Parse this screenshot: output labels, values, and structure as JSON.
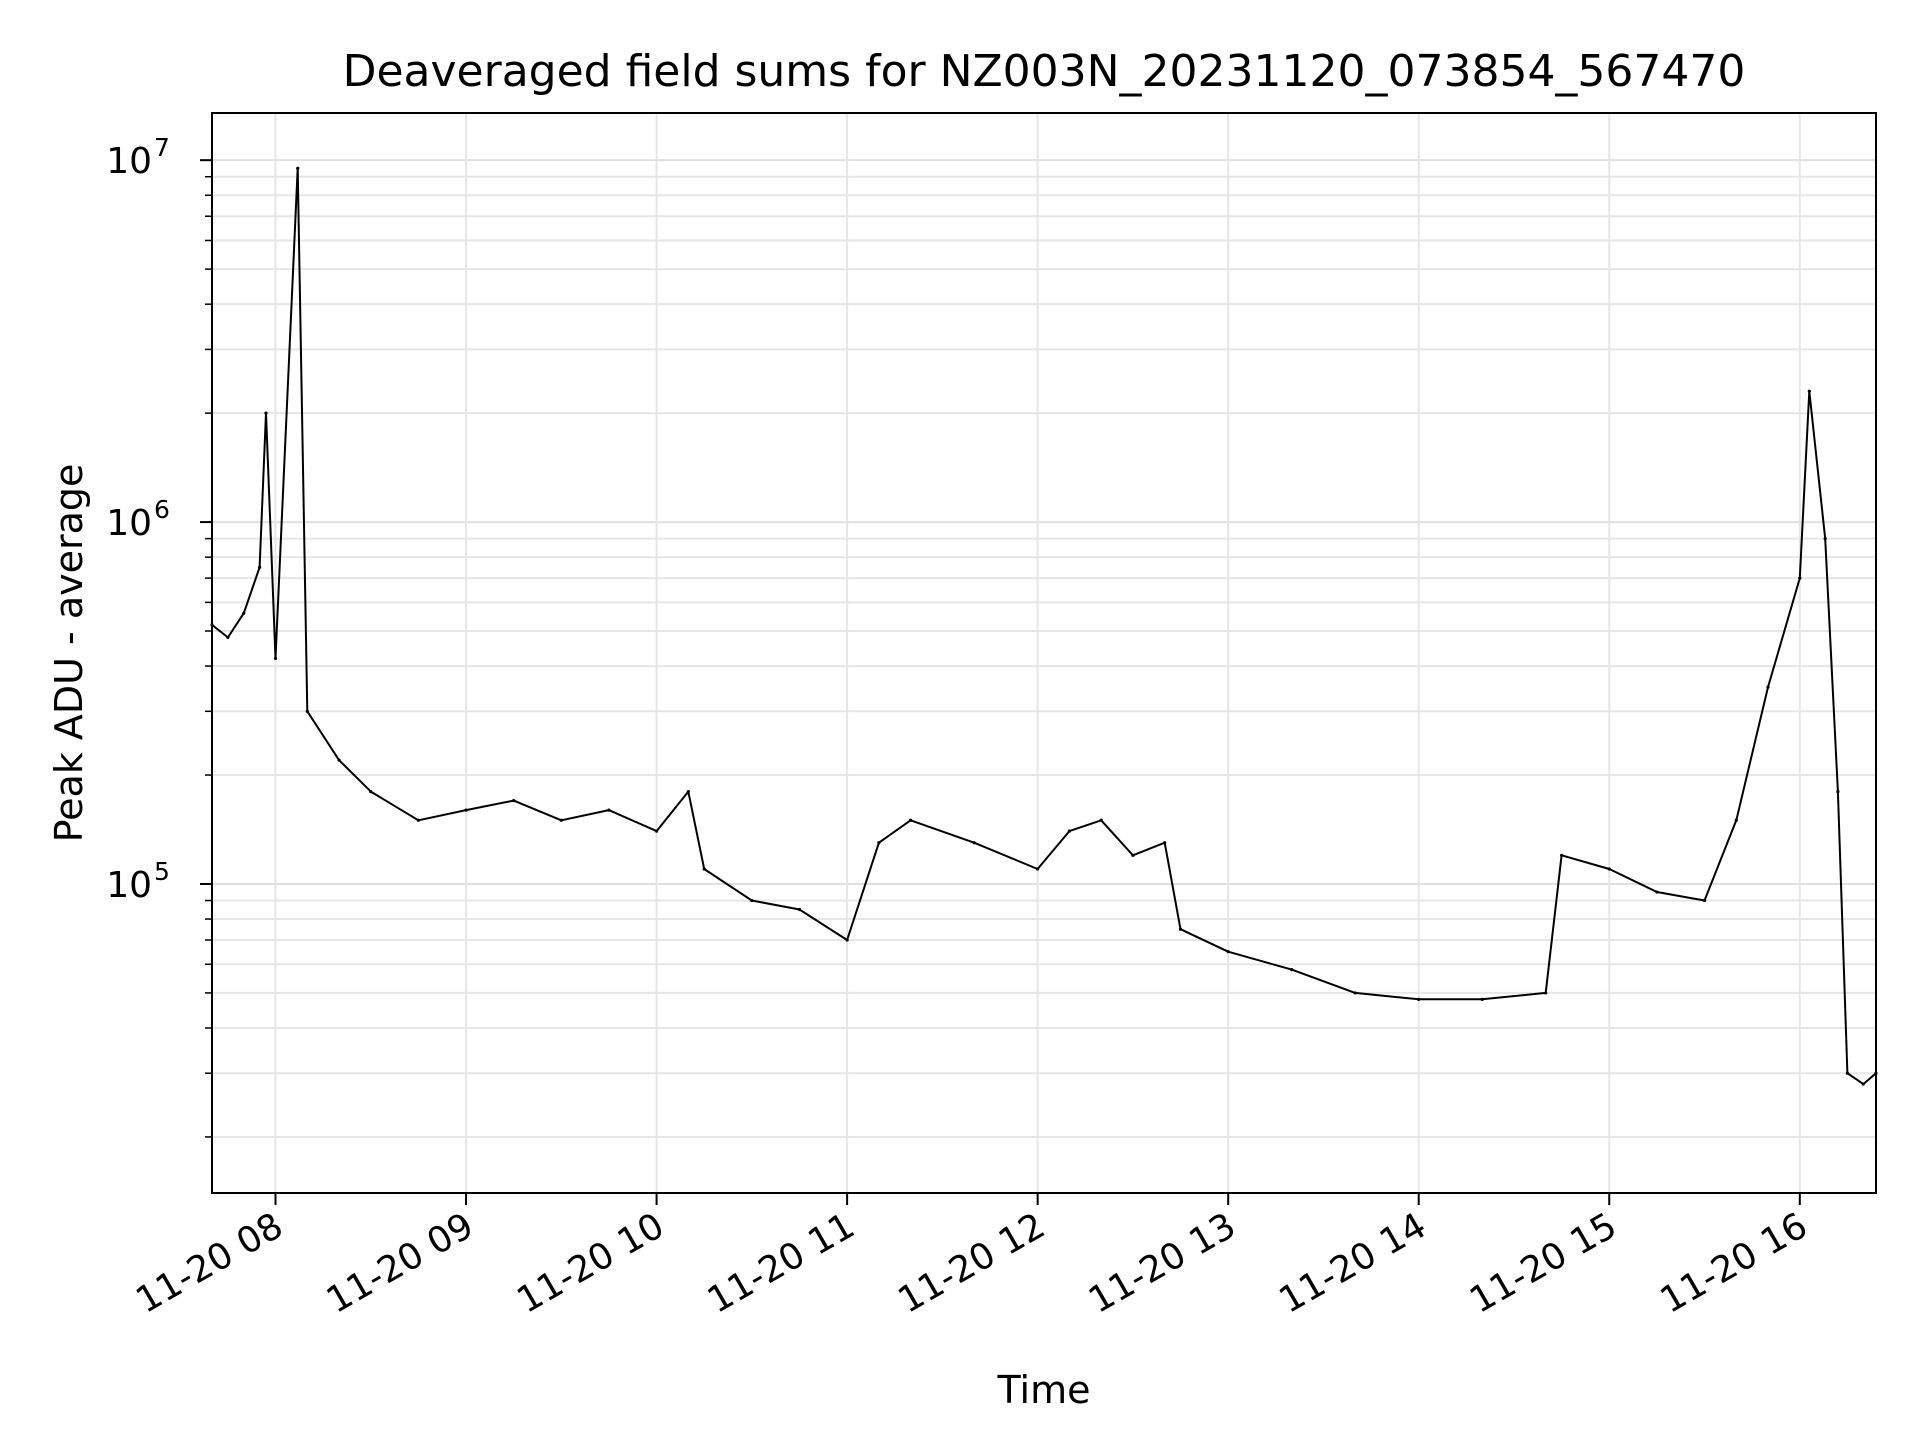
{
  "chart_data": {
    "type": "line",
    "title": "Deaveraged field sums for NZ003N_20231120_073854_567470",
    "xlabel": "Time",
    "ylabel": "Peak ADU - average",
    "y_scale": "log",
    "ylim": [
      14000,
      13500000
    ],
    "xlim": [
      "2023-11-20 07:40",
      "2023-11-20 16:24"
    ],
    "grid": true,
    "line_color": "#000000",
    "x_ticks": [
      {
        "at": "2023-11-20 08:00",
        "label": "11-20 08"
      },
      {
        "at": "2023-11-20 09:00",
        "label": "11-20 09"
      },
      {
        "at": "2023-11-20 10:00",
        "label": "11-20 10"
      },
      {
        "at": "2023-11-20 11:00",
        "label": "11-20 11"
      },
      {
        "at": "2023-11-20 12:00",
        "label": "11-20 12"
      },
      {
        "at": "2023-11-20 13:00",
        "label": "11-20 13"
      },
      {
        "at": "2023-11-20 14:00",
        "label": "11-20 14"
      },
      {
        "at": "2023-11-20 15:00",
        "label": "11-20 15"
      },
      {
        "at": "2023-11-20 16:00",
        "label": "11-20 16"
      }
    ],
    "y_ticks": [
      {
        "value": 100000,
        "base": "10",
        "exp": "5"
      },
      {
        "value": 1000000,
        "base": "10",
        "exp": "6"
      },
      {
        "value": 10000000,
        "base": "10",
        "exp": "7"
      }
    ],
    "series": [
      {
        "points": [
          [
            "2023-11-20 07:40",
            520000
          ],
          [
            "2023-11-20 07:45",
            480000
          ],
          [
            "2023-11-20 07:50",
            560000
          ],
          [
            "2023-11-20 07:55",
            750000
          ],
          [
            "2023-11-20 07:57",
            2000000
          ],
          [
            "2023-11-20 08:00",
            420000
          ],
          [
            "2023-11-20 08:07",
            9500000
          ],
          [
            "2023-11-20 08:10",
            300000
          ],
          [
            "2023-11-20 08:20",
            220000
          ],
          [
            "2023-11-20 08:30",
            180000
          ],
          [
            "2023-11-20 08:45",
            150000
          ],
          [
            "2023-11-20 09:00",
            160000
          ],
          [
            "2023-11-20 09:15",
            170000
          ],
          [
            "2023-11-20 09:30",
            150000
          ],
          [
            "2023-11-20 09:45",
            160000
          ],
          [
            "2023-11-20 10:00",
            140000
          ],
          [
            "2023-11-20 10:10",
            180000
          ],
          [
            "2023-11-20 10:15",
            110000
          ],
          [
            "2023-11-20 10:30",
            90000
          ],
          [
            "2023-11-20 10:45",
            85000
          ],
          [
            "2023-11-20 11:00",
            70000
          ],
          [
            "2023-11-20 11:10",
            130000
          ],
          [
            "2023-11-20 11:20",
            150000
          ],
          [
            "2023-11-20 11:40",
            130000
          ],
          [
            "2023-11-20 12:00",
            110000
          ],
          [
            "2023-11-20 12:10",
            140000
          ],
          [
            "2023-11-20 12:20",
            150000
          ],
          [
            "2023-11-20 12:30",
            120000
          ],
          [
            "2023-11-20 12:40",
            130000
          ],
          [
            "2023-11-20 12:45",
            75000
          ],
          [
            "2023-11-20 13:00",
            65000
          ],
          [
            "2023-11-20 13:20",
            58000
          ],
          [
            "2023-11-20 13:40",
            50000
          ],
          [
            "2023-11-20 14:00",
            48000
          ],
          [
            "2023-11-20 14:20",
            48000
          ],
          [
            "2023-11-20 14:40",
            50000
          ],
          [
            "2023-11-20 14:45",
            120000
          ],
          [
            "2023-11-20 15:00",
            110000
          ],
          [
            "2023-11-20 15:15",
            95000
          ],
          [
            "2023-11-20 15:30",
            90000
          ],
          [
            "2023-11-20 15:40",
            150000
          ],
          [
            "2023-11-20 15:50",
            350000
          ],
          [
            "2023-11-20 16:00",
            700000
          ],
          [
            "2023-11-20 16:03",
            2300000
          ],
          [
            "2023-11-20 16:08",
            900000
          ],
          [
            "2023-11-20 16:12",
            180000
          ],
          [
            "2023-11-20 16:15",
            30000
          ],
          [
            "2023-11-20 16:20",
            28000
          ],
          [
            "2023-11-20 16:24",
            30000
          ]
        ]
      }
    ]
  }
}
